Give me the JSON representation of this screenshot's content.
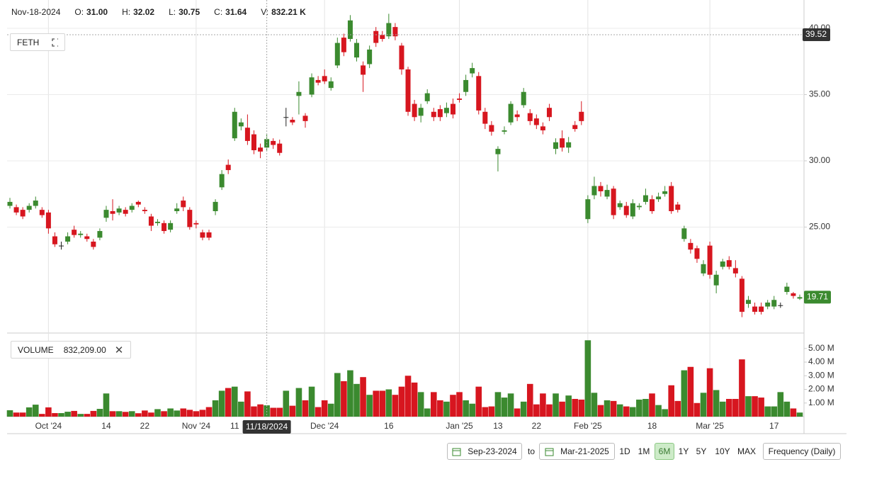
{
  "header": {
    "date": "Nov-18-2024",
    "fields": [
      {
        "label": "O:",
        "value": "31.00"
      },
      {
        "label": "H:",
        "value": "32.02"
      },
      {
        "label": "L:",
        "value": "30.75"
      },
      {
        "label": "C:",
        "value": "31.64"
      },
      {
        "label": "V:",
        "value": "832.21 K"
      }
    ]
  },
  "chart_data": [
    {
      "type": "candlestick",
      "legend": "FETH",
      "up_color": "#3b8a2f",
      "down_color": "#d7161f",
      "flat_color": "#222222",
      "categories": [
        null,
        null,
        null,
        null,
        null,
        null,
        "Oct '24",
        null,
        null,
        null,
        null,
        null,
        null,
        null,
        null,
        "14",
        null,
        null,
        null,
        null,
        null,
        "22",
        null,
        null,
        null,
        null,
        null,
        null,
        null,
        "Nov '24",
        null,
        null,
        null,
        null,
        null,
        "11",
        null,
        null,
        null,
        null,
        null,
        null,
        null,
        null,
        null,
        null,
        null,
        null,
        null,
        "Dec '24",
        null,
        null,
        null,
        null,
        null,
        null,
        null,
        null,
        null,
        "16",
        null,
        null,
        null,
        null,
        null,
        null,
        null,
        null,
        null,
        null,
        "Jan '25",
        null,
        null,
        null,
        null,
        null,
        "13",
        null,
        null,
        null,
        null,
        null,
        "22",
        null,
        null,
        null,
        null,
        null,
        null,
        null,
        "Feb '25",
        null,
        null,
        null,
        null,
        null,
        null,
        null,
        null,
        null,
        "18",
        null,
        null,
        null,
        null,
        null,
        null,
        null,
        null,
        "Mar '25",
        null,
        null,
        null,
        null,
        null,
        null,
        null,
        null,
        null,
        "17",
        null,
        null,
        null,
        null
      ],
      "open": [
        26.6,
        26.5,
        26.3,
        26.3,
        26.6,
        26.3,
        26.1,
        24.3,
        23.6,
        23.9,
        24.8,
        24.4,
        24.3,
        23.9,
        24.2,
        25.7,
        26.2,
        26.1,
        26.3,
        26.3,
        26.9,
        26.3,
        25.8,
        25.3,
        25.3,
        24.8,
        26.2,
        27.0,
        26.3,
        25.3,
        24.6,
        24.6,
        26.2,
        28.0,
        29.7,
        31.7,
        32.6,
        32.5,
        32.0,
        31.0,
        31.0,
        31.5,
        31.3,
        33.3,
        33.1,
        34.9,
        33.4,
        35.0,
        36.1,
        36.4,
        35.5,
        37.2,
        39.3,
        39.2,
        37.8,
        37.2,
        37.3,
        39.8,
        39.5,
        39.4,
        40.1,
        38.7,
        36.9,
        34.3,
        33.4,
        34.5,
        33.7,
        33.9,
        33.6,
        34.3,
        34.7,
        35.2,
        36.6,
        36.4,
        33.7,
        32.7,
        30.5,
        32.2,
        32.9,
        33.5,
        34.2,
        33.6,
        33.2,
        32.6,
        34.0,
        30.9,
        31.7,
        31.0,
        32.7,
        33.7,
        25.6,
        27.4,
        28.1,
        27.3,
        27.9,
        26.5,
        26.6,
        25.8,
        26.5,
        26.9,
        27.1,
        27.1,
        27.5,
        28.1,
        26.7,
        24.1,
        23.8,
        23.4,
        21.5,
        23.6,
        20.6,
        22.0,
        22.5,
        21.9,
        21.1,
        19.2,
        19.0,
        19.0,
        19.0,
        19.0,
        19.1,
        20.1,
        20.0,
        19.6
      ],
      "high": [
        27.2,
        26.7,
        26.5,
        26.8,
        27.3,
        26.5,
        26.3,
        24.6,
        23.9,
        24.6,
        25.1,
        24.7,
        24.5,
        24.1,
        24.9,
        26.6,
        27.1,
        26.6,
        26.5,
        26.8,
        27.0,
        26.5,
        26.0,
        25.6,
        25.5,
        25.5,
        26.8,
        27.3,
        26.5,
        25.5,
        24.8,
        24.8,
        27.1,
        29.3,
        30.1,
        34.0,
        33.2,
        33.5,
        32.3,
        31.3,
        32.02,
        31.7,
        31.6,
        34.0,
        33.3,
        36.0,
        33.6,
        36.6,
        36.4,
        36.9,
        36.3,
        39.3,
        39.6,
        41.0,
        39.2,
        37.5,
        38.7,
        40.1,
        39.8,
        41.1,
        40.4,
        38.9,
        37.1,
        34.6,
        34.3,
        35.4,
        34.0,
        34.2,
        34.4,
        34.7,
        35.1,
        36.5,
        37.4,
        36.7,
        34.0,
        33.0,
        31.1,
        32.6,
        34.5,
        33.8,
        35.5,
        33.9,
        33.5,
        32.9,
        34.3,
        31.7,
        32.3,
        31.8,
        33.0,
        34.5,
        27.4,
        28.8,
        28.4,
        28.2,
        28.1,
        27.0,
        26.9,
        27.1,
        26.8,
        27.9,
        27.4,
        27.6,
        28.1,
        28.4,
        26.9,
        25.1,
        24.1,
        23.6,
        22.5,
        23.9,
        21.7,
        22.6,
        22.8,
        22.5,
        21.3,
        19.8,
        19.3,
        19.3,
        19.5,
        19.8,
        19.3,
        20.8,
        20.1,
        19.9
      ],
      "low": [
        26.4,
        25.9,
        25.6,
        26.1,
        26.4,
        25.7,
        24.5,
        23.5,
        23.3,
        23.7,
        24.2,
        24.2,
        23.9,
        23.3,
        24.0,
        25.4,
        25.5,
        25.9,
        25.8,
        26.1,
        26.5,
        26.0,
        24.7,
        25.1,
        24.5,
        24.6,
        26.0,
        26.2,
        24.8,
        24.9,
        24.0,
        24.0,
        25.9,
        27.8,
        29.0,
        31.5,
        32.3,
        31.2,
        30.5,
        30.2,
        30.75,
        30.9,
        30.4,
        32.6,
        32.7,
        33.5,
        32.5,
        34.8,
        35.7,
        35.8,
        35.3,
        37.0,
        37.9,
        39.0,
        37.5,
        35.2,
        37.0,
        38.6,
        39.0,
        39.2,
        39.1,
        36.5,
        33.4,
        33.0,
        32.9,
        34.3,
        33.0,
        33.0,
        33.3,
        33.2,
        34.4,
        34.9,
        36.3,
        33.5,
        32.4,
        31.9,
        29.2,
        32.0,
        32.7,
        33.0,
        34.0,
        32.7,
        32.4,
        32.0,
        33.0,
        30.5,
        30.7,
        30.6,
        32.2,
        32.7,
        25.3,
        27.1,
        27.3,
        27.1,
        25.6,
        26.3,
        25.7,
        25.6,
        26.3,
        26.7,
        26.0,
        26.9,
        27.3,
        26.0,
        26.1,
        23.9,
        23.0,
        22.3,
        21.3,
        21.1,
        20.0,
        21.8,
        21.8,
        21.2,
        18.2,
        18.9,
        18.4,
        18.4,
        18.8,
        18.8,
        18.9,
        19.9,
        19.6,
        19.5
      ],
      "close": [
        26.9,
        26.1,
        25.8,
        26.6,
        27.0,
        25.9,
        24.9,
        23.7,
        23.6,
        24.3,
        24.4,
        24.5,
        24.1,
        23.5,
        24.7,
        26.3,
        26.0,
        26.4,
        26.0,
        26.6,
        26.7,
        26.2,
        25.1,
        25.4,
        24.7,
        25.3,
        26.4,
        26.5,
        25.0,
        25.2,
        24.2,
        24.2,
        26.9,
        29.0,
        29.3,
        33.7,
        32.9,
        31.5,
        30.8,
        30.7,
        31.64,
        31.2,
        30.6,
        33.3,
        32.9,
        35.2,
        33.0,
        36.3,
        35.9,
        36.0,
        36.0,
        38.9,
        38.2,
        40.6,
        38.9,
        36.5,
        38.4,
        38.9,
        39.2,
        40.4,
        39.4,
        36.9,
        33.7,
        33.3,
        34.0,
        35.1,
        33.3,
        33.3,
        34.0,
        33.5,
        34.6,
        36.1,
        37.0,
        33.8,
        32.8,
        32.2,
        30.9,
        32.3,
        34.3,
        33.3,
        35.2,
        33.0,
        32.7,
        32.3,
        33.3,
        31.4,
        31.0,
        31.4,
        32.4,
        33.0,
        27.1,
        28.1,
        27.7,
        27.8,
        25.9,
        26.8,
        25.9,
        26.8,
        26.6,
        27.4,
        26.2,
        27.3,
        27.7,
        26.2,
        26.3,
        24.9,
        23.3,
        22.6,
        22.2,
        21.4,
        21.4,
        22.4,
        22.0,
        21.5,
        18.6,
        19.5,
        18.6,
        18.6,
        19.3,
        19.5,
        19.1,
        20.5,
        19.8,
        19.71
      ],
      "ylim": [
        17,
        42.14
      ],
      "yticks": [
        {
          "value": 25,
          "label": "25.00"
        },
        {
          "value": 30,
          "label": "30.00"
        },
        {
          "value": 35,
          "label": "35.00"
        },
        {
          "value": 40,
          "label": "40.00"
        }
      ],
      "grid": true,
      "last_price": 19.71,
      "crosshair": {
        "price": 39.52,
        "x_label": "11/18/2024"
      }
    },
    {
      "type": "bar",
      "legend": "VOLUME",
      "legend_value": "832,209.00",
      "values": [
        0.47,
        0.3,
        0.3,
        0.68,
        0.88,
        0.2,
        0.68,
        0.26,
        0.26,
        0.36,
        0.42,
        0.2,
        0.2,
        0.42,
        0.57,
        1.7,
        0.4,
        0.4,
        0.35,
        0.4,
        0.25,
        0.45,
        0.3,
        0.55,
        0.4,
        0.6,
        0.45,
        0.6,
        0.5,
        0.4,
        0.5,
        0.7,
        1.2,
        1.9,
        2.1,
        2.2,
        1.1,
        1.85,
        0.75,
        0.9,
        0.83209,
        0.65,
        0.65,
        1.9,
        0.8,
        2.1,
        1.2,
        2.2,
        0.7,
        1.2,
        0.95,
        3.2,
        2.6,
        3.4,
        2.4,
        2.9,
        1.6,
        1.9,
        1.9,
        2.0,
        1.6,
        2.2,
        3.0,
        2.5,
        1.8,
        0.6,
        1.8,
        1.2,
        1.1,
        1.6,
        1.8,
        1.2,
        0.95,
        2.2,
        0.7,
        0.75,
        1.8,
        1.4,
        1.7,
        0.6,
        1.1,
        2.4,
        0.9,
        1.7,
        0.9,
        1.7,
        1.1,
        1.55,
        1.3,
        1.25,
        5.6,
        1.75,
        0.85,
        1.2,
        1.15,
        0.9,
        0.75,
        0.7,
        1.25,
        1.3,
        1.7,
        0.85,
        0.55,
        2.3,
        1.15,
        3.4,
        3.65,
        1.0,
        1.75,
        3.55,
        1.95,
        1.1,
        1.3,
        1.3,
        4.2,
        1.5,
        1.5,
        1.4,
        0.75,
        0.75,
        1.8,
        1.1,
        0.6,
        0.3
      ],
      "ylim": [
        0,
        6.08
      ],
      "yticks": [
        {
          "value": 1,
          "label": "1.00 M"
        },
        {
          "value": 2,
          "label": "2.00 M"
        },
        {
          "value": 3,
          "label": "3.00 M"
        },
        {
          "value": 4,
          "label": "4.00 M"
        },
        {
          "value": 5,
          "label": "5.00 M"
        }
      ]
    }
  ],
  "controls": {
    "start_date": "Sep-23-2024",
    "to": "to",
    "end_date": "Mar-21-2025",
    "ranges": [
      "1D",
      "1M",
      "6M",
      "1Y",
      "5Y",
      "10Y",
      "MAX"
    ],
    "active_range": "6M",
    "frequency": "Frequency (Daily)"
  }
}
